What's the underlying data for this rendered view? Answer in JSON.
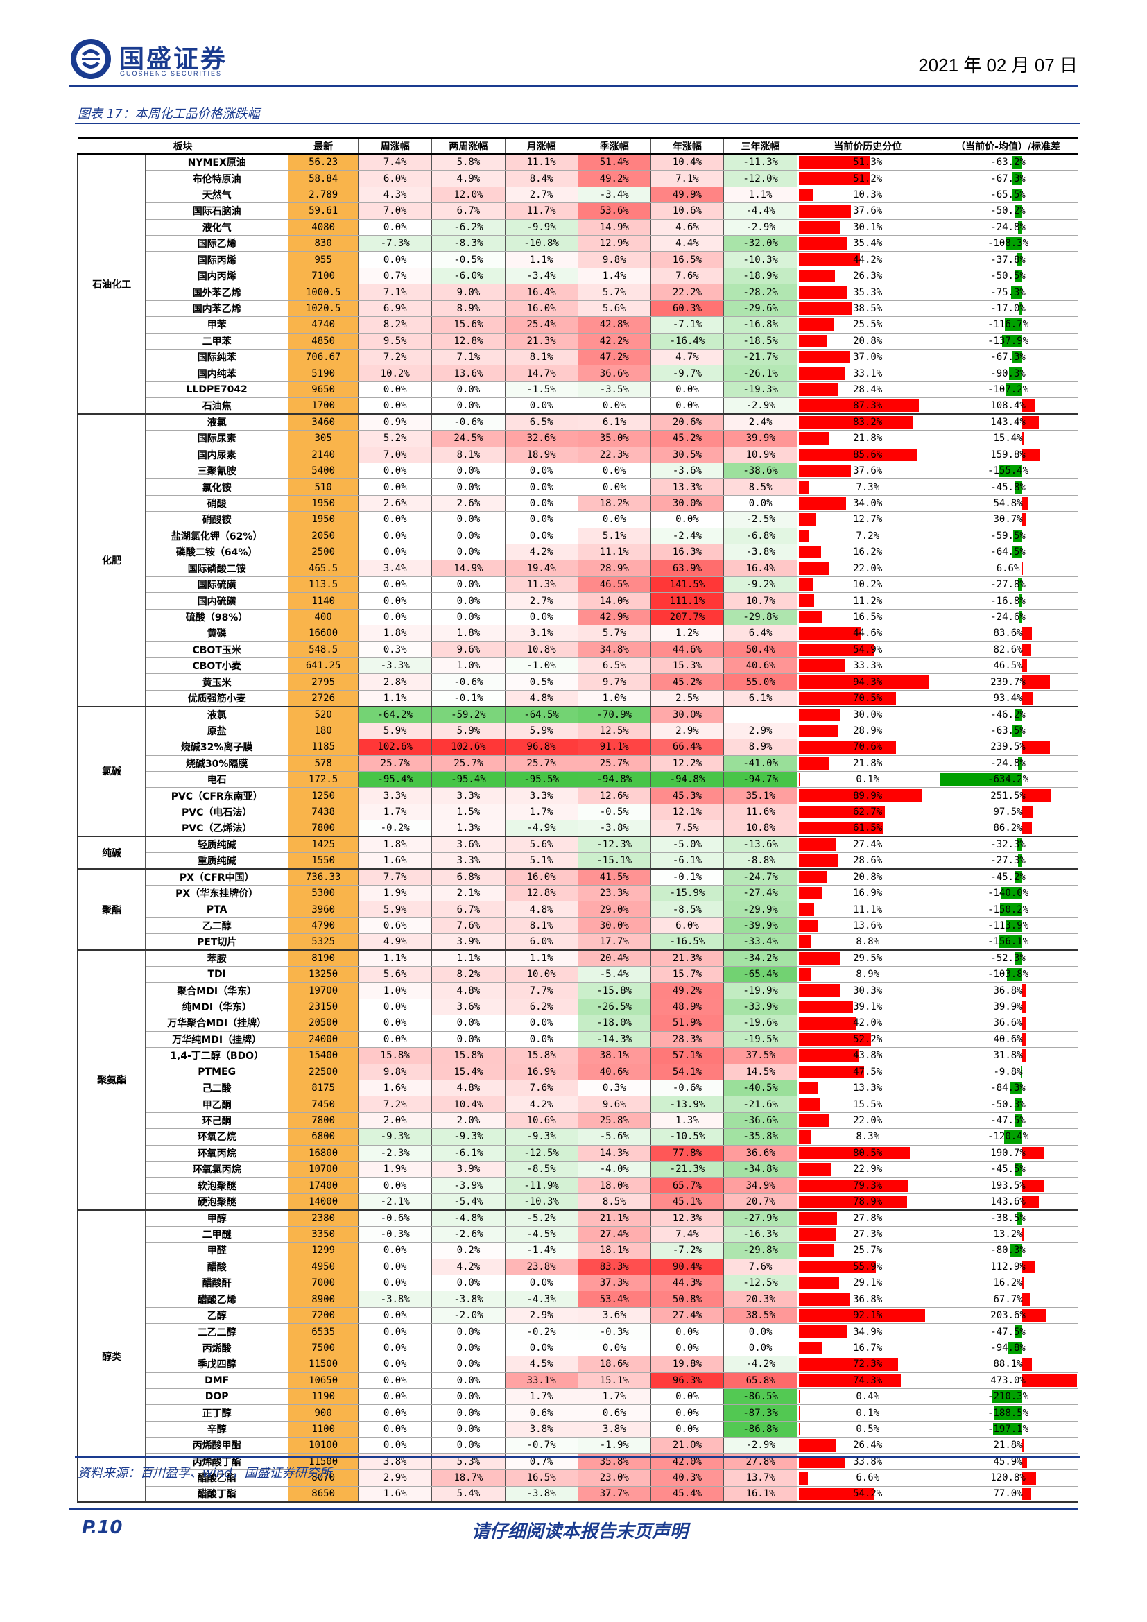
{
  "header": {
    "brand": "国盛证券",
    "brand_en": "GUOSHENG SECURITIES",
    "date": "2021 年 02 月 07 日"
  },
  "caption": "图表 17：本周化工品价格涨跌幅",
  "columns": [
    "板块",
    "最新",
    "周涨幅",
    "两周涨幅",
    "月涨幅",
    "季涨幅",
    "年涨幅",
    "三年涨幅",
    "当前价历史分位",
    "（当前价-均值）/标准差"
  ],
  "groups": [
    {
      "name": "石油化工",
      "rows": [
        [
          "NYMEX原油",
          "56.23",
          "7.4%",
          "5.8%",
          "11.1%",
          "51.4%",
          "10.4%",
          "-11.3%",
          "51.3%",
          "-63.2%"
        ],
        [
          "布伦特原油",
          "58.84",
          "6.0%",
          "4.9%",
          "8.4%",
          "49.2%",
          "7.1%",
          "-12.0%",
          "51.2%",
          "-67.3%"
        ],
        [
          "天然气",
          "2.789",
          "4.3%",
          "12.0%",
          "2.7%",
          "-3.4%",
          "49.9%",
          "1.1%",
          "10.3%",
          "-65.5%"
        ],
        [
          "国际石脑油",
          "59.61",
          "7.0%",
          "6.7%",
          "11.7%",
          "53.6%",
          "10.6%",
          "-4.4%",
          "37.6%",
          "-50.2%"
        ],
        [
          "液化气",
          "4080",
          "0.0%",
          "-6.2%",
          "-9.9%",
          "14.9%",
          "4.6%",
          "-2.9%",
          "30.1%",
          "-24.8%"
        ],
        [
          "国际乙烯",
          "830",
          "-7.3%",
          "-8.3%",
          "-10.8%",
          "12.9%",
          "4.4%",
          "-32.0%",
          "35.4%",
          "-108.3%"
        ],
        [
          "国际丙烯",
          "955",
          "0.0%",
          "-0.5%",
          "1.1%",
          "9.8%",
          "16.5%",
          "-10.3%",
          "44.2%",
          "-37.8%"
        ],
        [
          "国内丙烯",
          "7100",
          "0.7%",
          "-6.0%",
          "-3.4%",
          "1.4%",
          "7.6%",
          "-18.9%",
          "26.3%",
          "-50.5%"
        ],
        [
          "国外苯乙烯",
          "1000.5",
          "7.1%",
          "9.0%",
          "16.4%",
          "5.7%",
          "22.2%",
          "-28.2%",
          "35.3%",
          "-75.3%"
        ],
        [
          "国内苯乙烯",
          "1020.5",
          "6.9%",
          "8.9%",
          "16.0%",
          "5.6%",
          "60.3%",
          "-29.6%",
          "38.5%",
          "-17.0%"
        ],
        [
          "甲苯",
          "4740",
          "8.2%",
          "15.6%",
          "25.4%",
          "42.8%",
          "-7.1%",
          "-16.8%",
          "25.5%",
          "-116.7%"
        ],
        [
          "二甲苯",
          "4850",
          "9.5%",
          "12.8%",
          "21.3%",
          "42.2%",
          "-16.4%",
          "-18.5%",
          "20.8%",
          "-137.9%"
        ],
        [
          "国际纯苯",
          "706.67",
          "7.2%",
          "7.1%",
          "8.1%",
          "47.2%",
          "4.7%",
          "-21.7%",
          "37.0%",
          "-67.3%"
        ],
        [
          "国内纯苯",
          "5190",
          "10.2%",
          "13.6%",
          "14.7%",
          "36.6%",
          "-9.7%",
          "-26.1%",
          "33.1%",
          "-90.3%"
        ],
        [
          "LLDPE7042",
          "9650",
          "0.0%",
          "0.0%",
          "-1.5%",
          "-3.5%",
          "0.0%",
          "-19.3%",
          "28.4%",
          "-107.2%"
        ],
        [
          "石油焦",
          "1700",
          "0.0%",
          "0.0%",
          "0.0%",
          "0.0%",
          "0.0%",
          "-2.9%",
          "87.3%",
          "108.4%"
        ]
      ]
    },
    {
      "name": "化肥",
      "rows": [
        [
          "液氯",
          "3460",
          "0.9%",
          "-0.6%",
          "6.5%",
          "6.1%",
          "20.6%",
          "2.4%",
          "83.2%",
          "143.4%"
        ],
        [
          "国际尿素",
          "305",
          "5.2%",
          "24.5%",
          "32.6%",
          "35.0%",
          "45.2%",
          "39.9%",
          "21.8%",
          "15.4%"
        ],
        [
          "国内尿素",
          "2140",
          "7.0%",
          "8.1%",
          "18.9%",
          "22.3%",
          "30.5%",
          "10.9%",
          "85.6%",
          "159.8%"
        ],
        [
          "三聚氰胺",
          "5400",
          "0.0%",
          "0.0%",
          "0.0%",
          "0.0%",
          "-3.6%",
          "-38.6%",
          "37.6%",
          "-155.4%"
        ],
        [
          "氯化铵",
          "510",
          "0.0%",
          "0.0%",
          "0.0%",
          "0.0%",
          "13.3%",
          "8.5%",
          "7.3%",
          "-45.8%"
        ],
        [
          "硝酸",
          "1950",
          "2.6%",
          "2.6%",
          "0.0%",
          "18.2%",
          "30.0%",
          "0.0%",
          "34.0%",
          "54.8%"
        ],
        [
          "硝酸铵",
          "1950",
          "0.0%",
          "0.0%",
          "0.0%",
          "0.0%",
          "0.0%",
          "-2.5%",
          "12.7%",
          "30.7%"
        ],
        [
          "盐湖氯化钾（62%）",
          "2050",
          "0.0%",
          "0.0%",
          "0.0%",
          "5.1%",
          "-2.4%",
          "-6.8%",
          "7.2%",
          "-59.5%"
        ],
        [
          "磷酸二铵（64%）",
          "2500",
          "0.0%",
          "0.0%",
          "4.2%",
          "11.1%",
          "16.3%",
          "-3.8%",
          "16.2%",
          "-64.5%"
        ],
        [
          "国际磷酸二铵",
          "465.5",
          "3.4%",
          "14.9%",
          "19.4%",
          "28.9%",
          "63.9%",
          "16.4%",
          "22.0%",
          "6.6%"
        ],
        [
          "国际硫磺",
          "113.5",
          "0.0%",
          "0.0%",
          "11.3%",
          "46.5%",
          "141.5%",
          "-9.2%",
          "10.2%",
          "-27.8%"
        ],
        [
          "国内硫磺",
          "1140",
          "0.0%",
          "0.0%",
          "2.7%",
          "14.0%",
          "111.1%",
          "10.7%",
          "11.2%",
          "-16.8%"
        ],
        [
          "硫酸（98%）",
          "400",
          "0.0%",
          "0.0%",
          "0.0%",
          "42.9%",
          "207.7%",
          "-29.8%",
          "16.5%",
          "-24.6%"
        ],
        [
          "黄磷",
          "16600",
          "1.8%",
          "1.8%",
          "3.1%",
          "5.7%",
          "1.2%",
          "6.4%",
          "44.6%",
          "83.6%"
        ],
        [
          "CBOT玉米",
          "548.5",
          "0.3%",
          "9.6%",
          "10.8%",
          "34.8%",
          "44.6%",
          "50.4%",
          "54.9%",
          "82.6%"
        ],
        [
          "CBOT小麦",
          "641.25",
          "-3.3%",
          "1.0%",
          "-1.0%",
          "6.5%",
          "15.3%",
          "40.6%",
          "33.3%",
          "46.5%"
        ],
        [
          "黄玉米",
          "2795",
          "2.8%",
          "-0.6%",
          "0.5%",
          "9.7%",
          "45.2%",
          "55.0%",
          "94.3%",
          "239.7%"
        ],
        [
          "优质强筋小麦",
          "2726",
          "1.1%",
          "-0.1%",
          "4.8%",
          "1.0%",
          "2.5%",
          "6.1%",
          "70.5%",
          "93.4%"
        ]
      ]
    },
    {
      "name": "氯碱",
      "rows": [
        [
          "液氯",
          "520",
          "-64.2%",
          "-59.2%",
          "-64.5%",
          "-70.9%",
          "30.0%",
          "",
          "30.0%",
          "-46.2%"
        ],
        [
          "原盐",
          "180",
          "5.9%",
          "5.9%",
          "5.9%",
          "12.5%",
          "2.9%",
          "2.9%",
          "28.9%",
          "-63.5%"
        ],
        [
          "烧碱32%离子膜",
          "1185",
          "102.6%",
          "102.6%",
          "96.8%",
          "91.1%",
          "66.4%",
          "8.9%",
          "70.6%",
          "239.5%"
        ],
        [
          "烧碱30%隔膜",
          "578",
          "25.7%",
          "25.7%",
          "25.7%",
          "25.7%",
          "12.2%",
          "-41.0%",
          "21.8%",
          "-24.8%"
        ],
        [
          "电石",
          "172.5",
          "-95.4%",
          "-95.4%",
          "-95.5%",
          "-94.8%",
          "-94.8%",
          "-94.7%",
          "0.1%",
          "-634.2%"
        ],
        [
          "PVC（CFR东南亚）",
          "1250",
          "3.3%",
          "3.3%",
          "3.3%",
          "12.6%",
          "45.3%",
          "35.1%",
          "89.9%",
          "251.5%"
        ],
        [
          "PVC（电石法）",
          "7438",
          "1.7%",
          "1.5%",
          "1.7%",
          "-0.5%",
          "12.1%",
          "11.6%",
          "62.7%",
          "97.5%"
        ],
        [
          "PVC（乙烯法）",
          "7800",
          "-0.2%",
          "1.3%",
          "-4.9%",
          "-3.8%",
          "7.5%",
          "10.8%",
          "61.5%",
          "86.2%"
        ]
      ]
    },
    {
      "name": "纯碱",
      "rows": [
        [
          "轻质纯碱",
          "1425",
          "1.8%",
          "3.6%",
          "5.6%",
          "-12.3%",
          "-5.0%",
          "-13.6%",
          "27.4%",
          "-32.3%"
        ],
        [
          "重质纯碱",
          "1550",
          "1.6%",
          "3.3%",
          "5.1%",
          "-15.1%",
          "-6.1%",
          "-8.8%",
          "28.6%",
          "-27.3%"
        ]
      ]
    },
    {
      "name": "聚酯",
      "rows": [
        [
          "PX（CFR中国）",
          "736.33",
          "7.7%",
          "6.8%",
          "16.0%",
          "41.5%",
          "-0.1%",
          "-24.7%",
          "20.8%",
          "-45.2%"
        ],
        [
          "PX（华东挂牌价）",
          "5300",
          "1.9%",
          "2.1%",
          "12.8%",
          "23.3%",
          "-15.9%",
          "-27.4%",
          "16.9%",
          "-140.0%"
        ],
        [
          "PTA",
          "3960",
          "5.9%",
          "6.7%",
          "4.8%",
          "29.0%",
          "-8.5%",
          "-29.9%",
          "11.1%",
          "-150.2%"
        ],
        [
          "乙二醇",
          "4790",
          "0.6%",
          "7.6%",
          "8.1%",
          "30.0%",
          "6.0%",
          "-39.9%",
          "13.6%",
          "-113.9%"
        ],
        [
          "PET切片",
          "5325",
          "4.9%",
          "3.9%",
          "6.0%",
          "17.7%",
          "-16.5%",
          "-33.4%",
          "8.8%",
          "-156.1%"
        ]
      ]
    },
    {
      "name": "聚氨酯",
      "rows": [
        [
          "苯胺",
          "8190",
          "1.1%",
          "1.1%",
          "1.1%",
          "20.4%",
          "21.3%",
          "-34.2%",
          "29.5%",
          "-52.3%"
        ],
        [
          "TDI",
          "13250",
          "5.6%",
          "8.2%",
          "10.0%",
          "-5.4%",
          "15.7%",
          "-65.4%",
          "8.9%",
          "-103.8%"
        ],
        [
          "聚合MDI（华东）",
          "19700",
          "1.0%",
          "4.8%",
          "7.7%",
          "-15.8%",
          "49.2%",
          "-19.9%",
          "30.3%",
          "36.8%"
        ],
        [
          "纯MDI（华东）",
          "23150",
          "0.0%",
          "3.6%",
          "6.2%",
          "-26.5%",
          "48.9%",
          "-33.9%",
          "39.1%",
          "39.9%"
        ],
        [
          "万华聚合MDI（挂牌）",
          "20500",
          "0.0%",
          "0.0%",
          "0.0%",
          "-18.0%",
          "51.9%",
          "-19.6%",
          "42.0%",
          "36.6%"
        ],
        [
          "万华纯MDI（挂牌）",
          "24000",
          "0.0%",
          "0.0%",
          "0.0%",
          "-14.3%",
          "28.3%",
          "-19.5%",
          "52.2%",
          "40.6%"
        ],
        [
          "1,4-丁二醇（BDO）",
          "15400",
          "15.8%",
          "15.8%",
          "15.8%",
          "38.1%",
          "57.1%",
          "37.5%",
          "43.8%",
          "31.8%"
        ],
        [
          "PTMEG",
          "22500",
          "9.8%",
          "15.4%",
          "16.9%",
          "40.6%",
          "54.1%",
          "14.5%",
          "47.5%",
          "-9.8%"
        ],
        [
          "己二酸",
          "8175",
          "1.6%",
          "4.8%",
          "7.6%",
          "0.3%",
          "-0.6%",
          "-40.5%",
          "13.3%",
          "-84.3%"
        ],
        [
          "甲乙酮",
          "7450",
          "7.2%",
          "10.4%",
          "4.2%",
          "9.6%",
          "-13.9%",
          "-21.6%",
          "15.5%",
          "-50.3%"
        ],
        [
          "环己酮",
          "7800",
          "2.0%",
          "2.0%",
          "10.6%",
          "25.8%",
          "1.3%",
          "-36.6%",
          "22.0%",
          "-47.5%"
        ],
        [
          "环氧乙烷",
          "6800",
          "-9.3%",
          "-9.3%",
          "-9.3%",
          "-5.6%",
          "-10.5%",
          "-35.8%",
          "8.3%",
          "-120.4%"
        ],
        [
          "环氧丙烷",
          "16800",
          "-2.3%",
          "-6.1%",
          "-12.5%",
          "14.3%",
          "77.8%",
          "36.6%",
          "80.5%",
          "190.7%"
        ],
        [
          "环氧氯丙烷",
          "10700",
          "1.9%",
          "3.9%",
          "-8.5%",
          "-4.0%",
          "-21.3%",
          "-34.8%",
          "22.9%",
          "-45.5%"
        ],
        [
          "软泡聚醚",
          "17400",
          "0.0%",
          "-3.9%",
          "-11.9%",
          "18.0%",
          "65.7%",
          "34.9%",
          "79.3%",
          "193.5%"
        ],
        [
          "硬泡聚醚",
          "14000",
          "-2.1%",
          "-5.4%",
          "-10.3%",
          "8.5%",
          "45.1%",
          "20.7%",
          "78.9%",
          "143.6%"
        ]
      ]
    },
    {
      "name": "醇类",
      "rows": [
        [
          "甲醇",
          "2380",
          "-0.6%",
          "-4.8%",
          "-5.2%",
          "21.1%",
          "12.3%",
          "-27.9%",
          "27.8%",
          "-38.5%"
        ],
        [
          "二甲醚",
          "3350",
          "-0.3%",
          "-2.6%",
          "-4.5%",
          "27.4%",
          "7.4%",
          "-16.3%",
          "27.3%",
          "13.2%"
        ],
        [
          "甲醛",
          "1299",
          "0.0%",
          "0.2%",
          "-1.4%",
          "18.1%",
          "-7.2%",
          "-29.8%",
          "25.7%",
          "-80.3%"
        ],
        [
          "醋酸",
          "4950",
          "0.0%",
          "4.2%",
          "23.8%",
          "83.3%",
          "90.4%",
          "7.6%",
          "55.9%",
          "112.9%"
        ],
        [
          "醋酸酐",
          "7000",
          "0.0%",
          "0.0%",
          "0.0%",
          "37.3%",
          "44.3%",
          "-12.5%",
          "29.1%",
          "16.2%"
        ],
        [
          "醋酸乙烯",
          "8900",
          "-3.8%",
          "-3.8%",
          "-4.3%",
          "53.4%",
          "50.8%",
          "20.3%",
          "36.8%",
          "67.7%"
        ],
        [
          "乙醇",
          "7200",
          "0.0%",
          "-2.0%",
          "2.9%",
          "3.6%",
          "27.4%",
          "38.5%",
          "92.1%",
          "203.6%"
        ],
        [
          "二乙二醇",
          "6535",
          "0.0%",
          "0.0%",
          "-0.2%",
          "-0.3%",
          "0.0%",
          "0.0%",
          "34.9%",
          "-47.5%"
        ],
        [
          "丙烯酸",
          "7500",
          "0.0%",
          "0.0%",
          "0.0%",
          "0.0%",
          "0.0%",
          "0.0%",
          "16.7%",
          "-94.8%"
        ],
        [
          "季戊四醇",
          "11500",
          "0.0%",
          "0.0%",
          "4.5%",
          "18.6%",
          "19.8%",
          "-4.2%",
          "72.3%",
          "88.1%"
        ],
        [
          "DMF",
          "10650",
          "0.0%",
          "0.0%",
          "33.1%",
          "15.1%",
          "96.3%",
          "65.8%",
          "74.3%",
          "473.0%"
        ],
        [
          "DOP",
          "1190",
          "0.0%",
          "0.0%",
          "1.7%",
          "1.7%",
          "0.0%",
          "-86.5%",
          "0.4%",
          "-210.3%"
        ],
        [
          "正丁醇",
          "900",
          "0.0%",
          "0.0%",
          "0.6%",
          "0.6%",
          "0.0%",
          "-87.3%",
          "0.1%",
          "-188.5%"
        ],
        [
          "辛醇",
          "1100",
          "0.0%",
          "0.0%",
          "3.8%",
          "3.8%",
          "0.0%",
          "-86.8%",
          "0.5%",
          "-197.1%"
        ],
        [
          "丙烯酸甲酯",
          "10100",
          "0.0%",
          "0.0%",
          "-0.7%",
          "-1.9%",
          "21.0%",
          "-2.9%",
          "26.4%",
          "21.8%"
        ],
        [
          "丙烯酸丁酯",
          "11500",
          "3.8%",
          "5.3%",
          "0.7%",
          "35.8%",
          "42.0%",
          "27.8%",
          "33.8%",
          "45.9%"
        ],
        [
          "醋酸乙酯",
          "8070",
          "2.9%",
          "18.7%",
          "16.5%",
          "23.0%",
          "40.3%",
          "13.7%",
          "6.6%",
          "120.8%"
        ],
        [
          "醋酸丁酯",
          "8650",
          "1.6%",
          "5.4%",
          "-3.8%",
          "37.7%",
          "45.4%",
          "16.1%",
          "54.2%",
          "77.0%"
        ]
      ]
    }
  ],
  "source": "资料来源：百川盈孚、wind，国盛证券研究所",
  "footer": {
    "page": "P.10",
    "disclaimer": "请仔细阅读本报告末页声明"
  },
  "colors": {
    "brand": "#1a3b8f",
    "price_bg": "#f9b44b",
    "up": "#ff0000",
    "down": "#00a000"
  }
}
